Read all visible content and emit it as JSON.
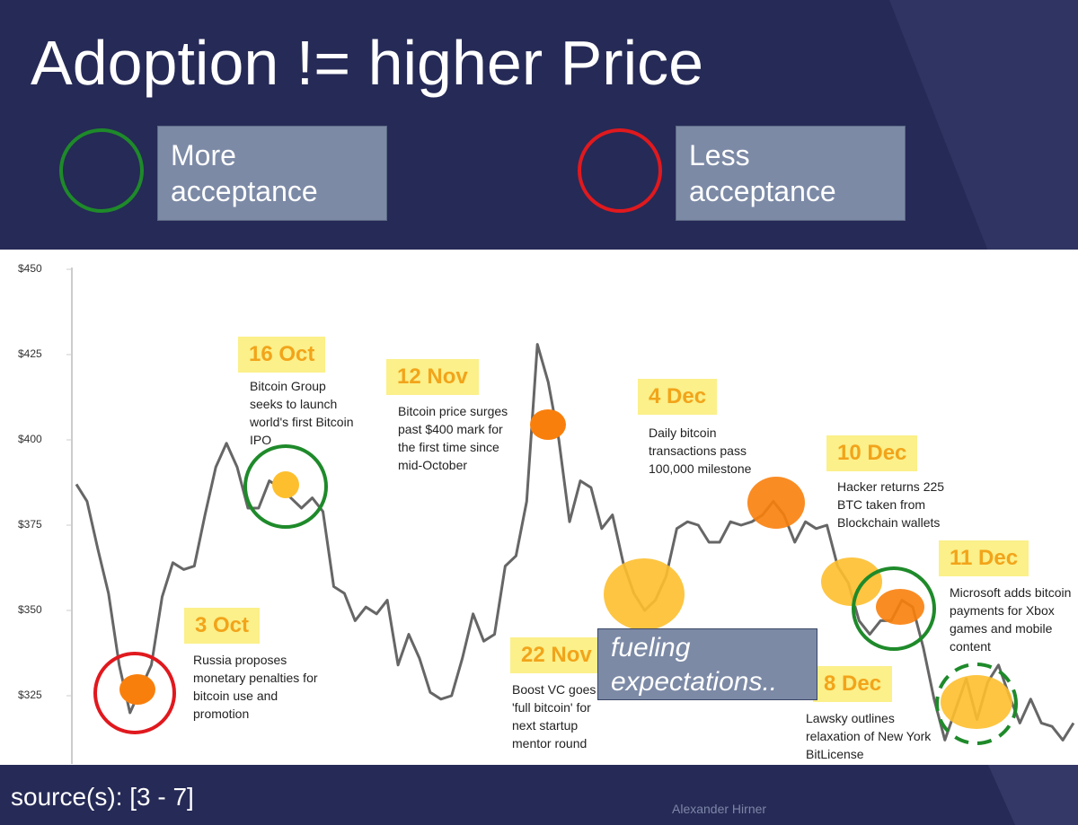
{
  "chart_data": {
    "type": "line",
    "title": "Adoption != higher Price",
    "legend": [
      {
        "label": "More acceptance",
        "color": "#1e8a2a"
      },
      {
        "label": "Less acceptance",
        "color": "#e0191e"
      }
    ],
    "ylim": [
      305,
      450
    ],
    "yticks": [
      {
        "value": 325,
        "label": "$325"
      },
      {
        "value": 350,
        "label": "$350"
      },
      {
        "value": 375,
        "label": "$375"
      },
      {
        "value": 400,
        "label": "$400"
      },
      {
        "value": 425,
        "label": "$425"
      },
      {
        "value": 450,
        "label": "$450"
      }
    ],
    "color": "#666666",
    "values": [
      387,
      382,
      368,
      355,
      334,
      320,
      327,
      334,
      354,
      364,
      362,
      363,
      378,
      392,
      399,
      392,
      380,
      380,
      388,
      386,
      383,
      380,
      383,
      379,
      357,
      355,
      347,
      351,
      349,
      353,
      334,
      343,
      336,
      326,
      324,
      325,
      336,
      349,
      341,
      343,
      363,
      366,
      382,
      428,
      417,
      400,
      376,
      388,
      386,
      374,
      378,
      364,
      355,
      350,
      353,
      360,
      374,
      376,
      375,
      370,
      370,
      376,
      375,
      376,
      378,
      382,
      378,
      370,
      376,
      374,
      375,
      363,
      358,
      347,
      343,
      347,
      347,
      353,
      351,
      339,
      324,
      312,
      321,
      330,
      318,
      329,
      334,
      325,
      317,
      324,
      317,
      316,
      312,
      317
    ],
    "annotations": [
      {
        "date": "3 Oct",
        "text": "Russia proposes monetary penalties for bitcoin use and promotion"
      },
      {
        "date": "16 Oct",
        "text": "Bitcoin Group seeks to launch world's first Bitcoin IPO"
      },
      {
        "date": "12 Nov",
        "text": "Bitcoin price surges past $400 mark for the first time since mid-October"
      },
      {
        "date": "22 Nov",
        "text": "Boost VC goes 'full bitcoin' for next startup mentor round"
      },
      {
        "date": "4 Dec",
        "text": "Daily bitcoin transactions pass 100,000 milestone"
      },
      {
        "date": "8 Dec",
        "text": "Lawsky outlines relaxation of New York BitLicense"
      },
      {
        "date": "10 Dec",
        "text": "Hacker returns 225 BTC taken from Blockchain wallets"
      },
      {
        "date": "11 Dec",
        "text": "Microsoft adds bitcoin payments for Xbox games and mobile content"
      }
    ],
    "callout": "fueling expectations..",
    "source": "source(s): [3 - 7]",
    "author": "Alexander Hirner"
  }
}
